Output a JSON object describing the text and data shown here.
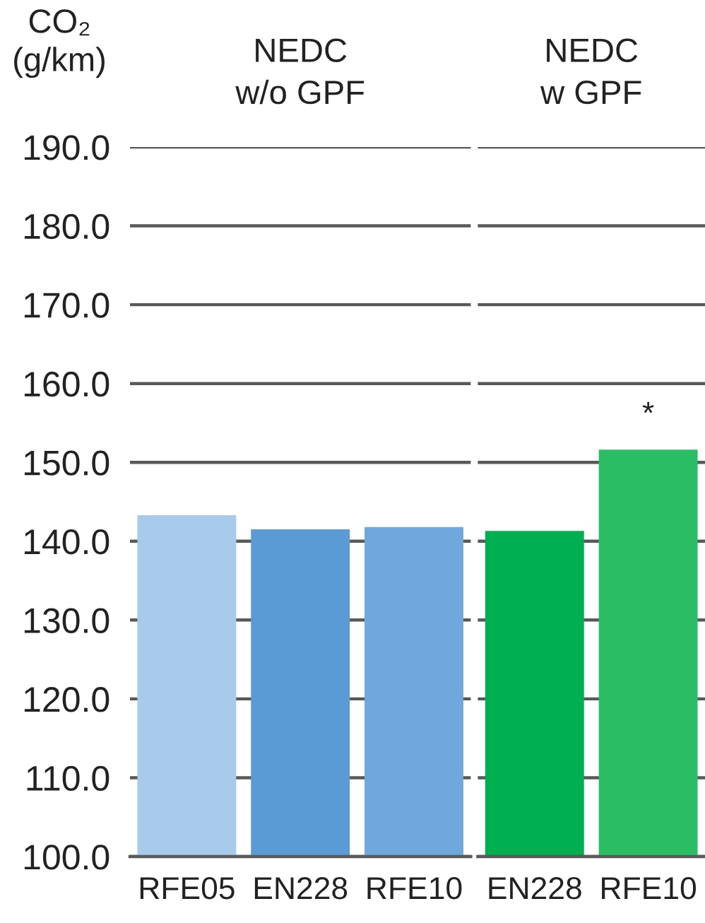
{
  "chart_data": [
    {
      "type": "bar",
      "title": "NEDC\nw/o GPF",
      "ylabel": "CO₂\n(g/km)",
      "categories": [
        "RFE05",
        "EN228",
        "RFE10"
      ],
      "values": [
        143.3,
        141.5,
        141.8
      ],
      "colors": [
        "#a9cbeb",
        "#5b9bd5",
        "#6fa8dc"
      ],
      "ylim": [
        100,
        190
      ],
      "yticks": [
        {
          "value": 100,
          "label": "100.0"
        },
        {
          "value": 110,
          "label": "110.0"
        },
        {
          "value": 120,
          "label": "120.0"
        },
        {
          "value": 130,
          "label": "130.0"
        },
        {
          "value": 140,
          "label": "140.0"
        },
        {
          "value": 150,
          "label": "150.0"
        },
        {
          "value": 160,
          "label": "160.0"
        },
        {
          "value": 170,
          "label": "170.0"
        },
        {
          "value": 180,
          "label": "180.0"
        },
        {
          "value": 190,
          "label": "190.0"
        }
      ],
      "grid": "y"
    },
    {
      "type": "bar",
      "title": "NEDC\nw GPF",
      "categories": [
        "EN228",
        "RFE10"
      ],
      "values": [
        141.3,
        151.6
      ],
      "colors": [
        "#00b050",
        "#2abd64"
      ],
      "ylim": [
        100,
        190
      ],
      "yticks": [
        100,
        110,
        120,
        130,
        140,
        150,
        160,
        170,
        180,
        190
      ],
      "grid": "y",
      "tick_labels": "x",
      "annotations": [
        "*"
      ]
    }
  ]
}
